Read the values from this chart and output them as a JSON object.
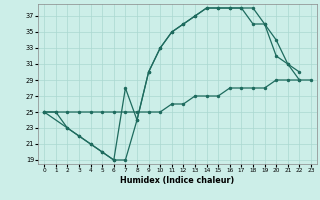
{
  "xlabel": "Humidex (Indice chaleur)",
  "bg_color": "#cceee8",
  "line_color": "#1e6b5e",
  "grid_color": "#aad8d0",
  "xlim": [
    -0.5,
    23.5
  ],
  "ylim": [
    18.5,
    38.5
  ],
  "xticks": [
    0,
    1,
    2,
    3,
    4,
    5,
    6,
    7,
    8,
    9,
    10,
    11,
    12,
    13,
    14,
    15,
    16,
    17,
    18,
    19,
    20,
    21,
    22,
    23
  ],
  "yticks": [
    19,
    21,
    23,
    25,
    27,
    29,
    31,
    33,
    35,
    37
  ],
  "line1_x": [
    0,
    1,
    2,
    3,
    4,
    5,
    6,
    7,
    8,
    9,
    10,
    11,
    12,
    13,
    14,
    15,
    16,
    17,
    18,
    19,
    20,
    21,
    22
  ],
  "line1_y": [
    25,
    25,
    23,
    22,
    21,
    20,
    19,
    19,
    24,
    30,
    33,
    35,
    36,
    37,
    38,
    38,
    38,
    38,
    38,
    36,
    34,
    31,
    30
  ],
  "line2_x": [
    0,
    2,
    3,
    4,
    5,
    6,
    7,
    8,
    9,
    10,
    11,
    12,
    13,
    14,
    15,
    16,
    17,
    18,
    19,
    20,
    21,
    22
  ],
  "line2_y": [
    25,
    23,
    22,
    21,
    20,
    19,
    28,
    24,
    30,
    33,
    35,
    36,
    37,
    38,
    38,
    38,
    38,
    36,
    36,
    32,
    31,
    29
  ],
  "line3_x": [
    0,
    1,
    2,
    3,
    4,
    5,
    6,
    7,
    8,
    9,
    10,
    11,
    12,
    13,
    14,
    15,
    16,
    17,
    18,
    19,
    20,
    21,
    22,
    23
  ],
  "line3_y": [
    25,
    25,
    25,
    25,
    25,
    25,
    25,
    25,
    25,
    25,
    25,
    26,
    26,
    27,
    27,
    27,
    28,
    28,
    28,
    28,
    29,
    29,
    29,
    29
  ]
}
